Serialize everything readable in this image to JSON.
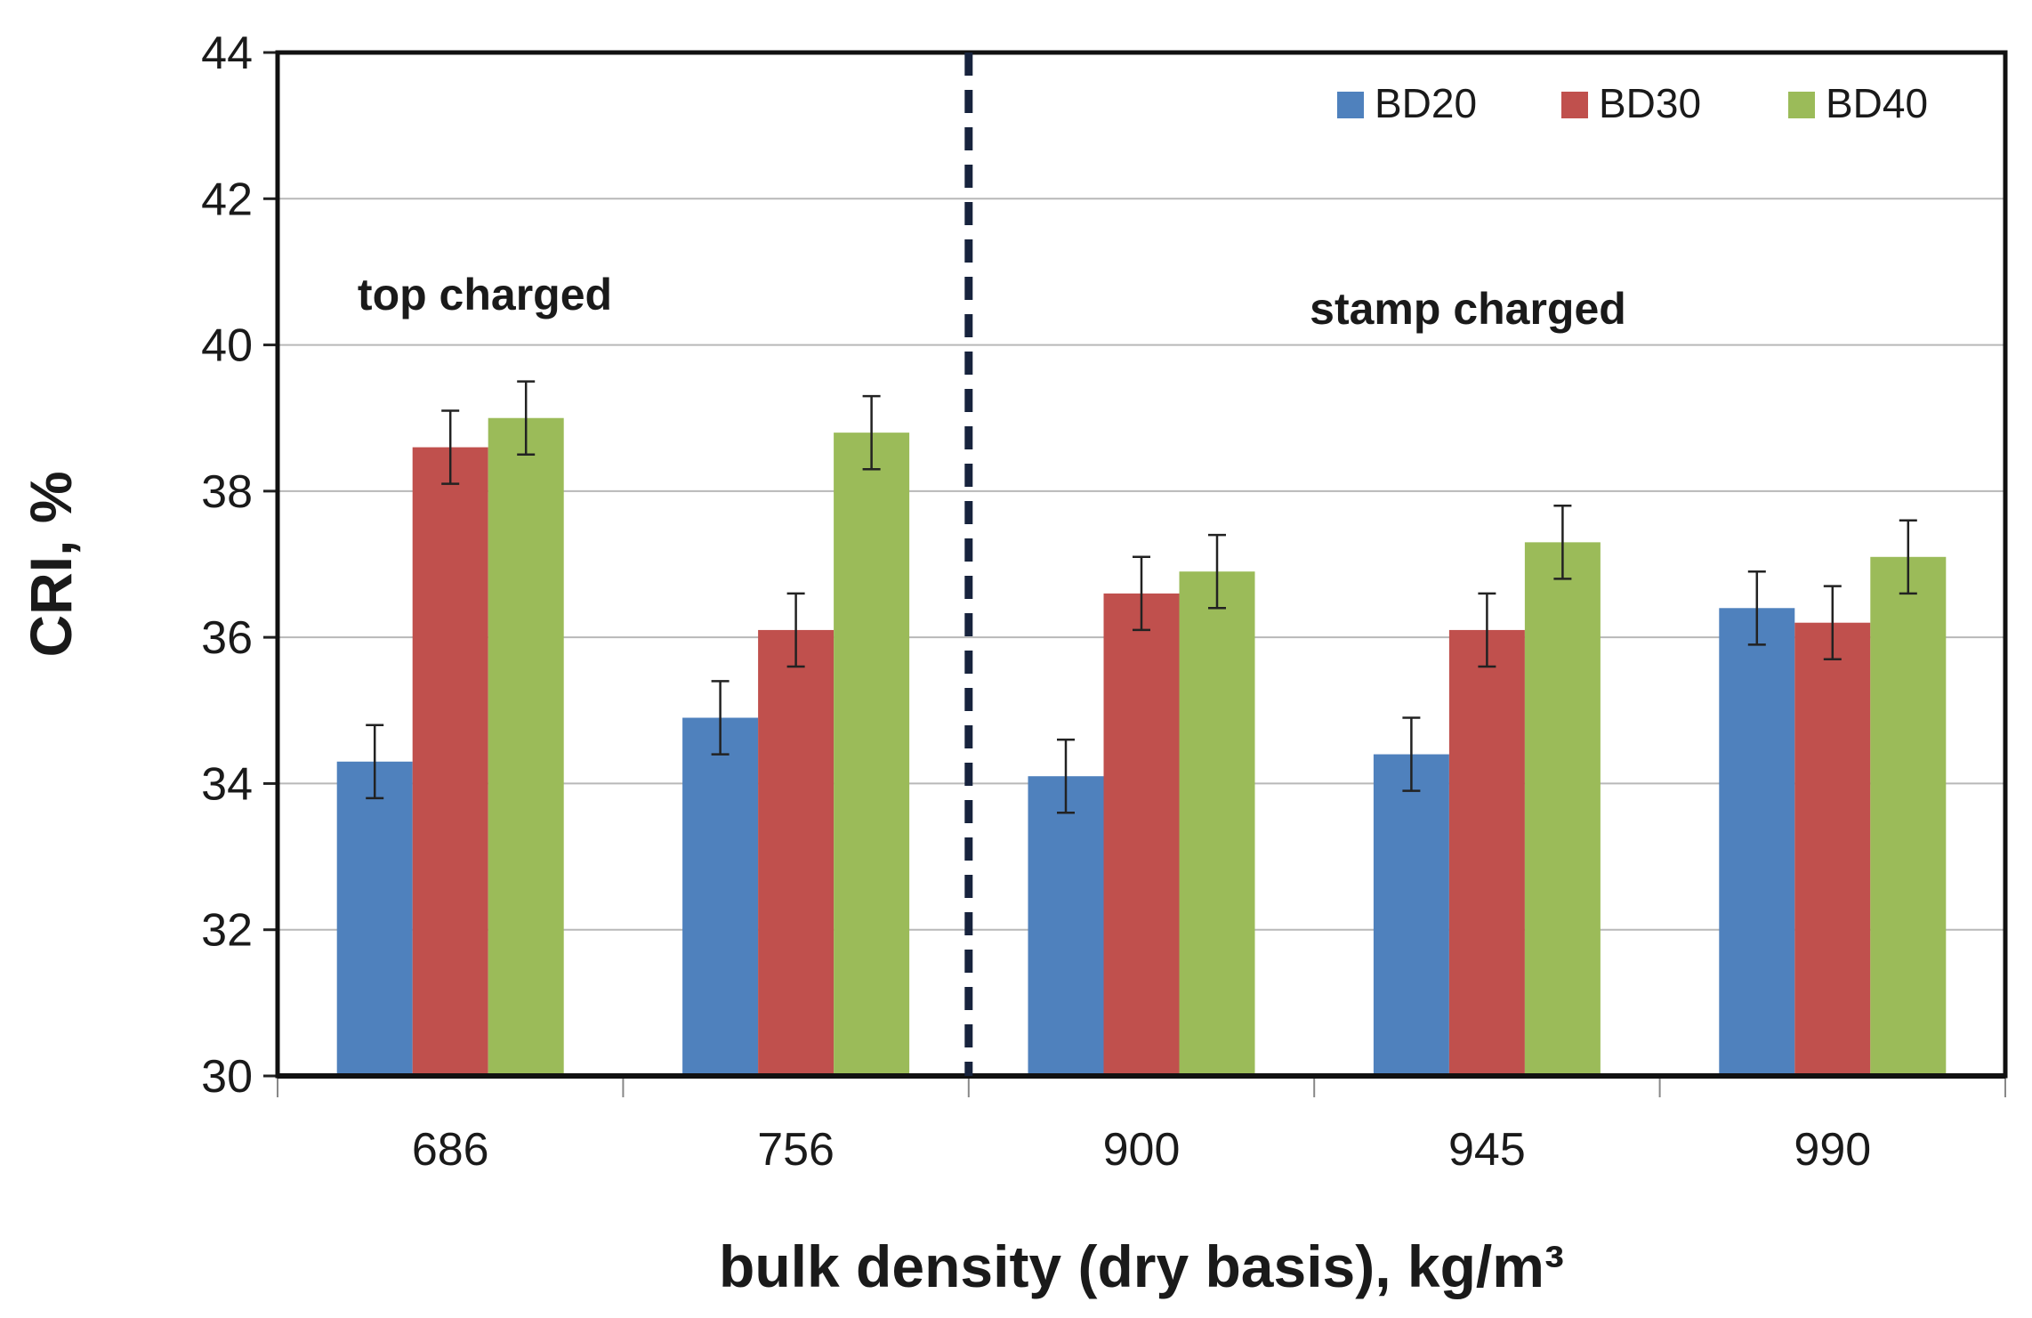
{
  "chart_data": {
    "type": "bar",
    "title": "",
    "xlabel": "bulk density (dry basis), kg/m³",
    "ylabel": "CRI, %",
    "categories": [
      "686",
      "756",
      "900",
      "945",
      "990"
    ],
    "series": [
      {
        "name": "BD20",
        "color": "#4F81BD",
        "values": [
          34.3,
          34.9,
          34.1,
          34.4,
          36.4
        ],
        "errors": [
          0.5,
          0.5,
          0.5,
          0.5,
          0.5
        ]
      },
      {
        "name": "BD30",
        "color": "#C0504D",
        "values": [
          38.6,
          36.1,
          36.6,
          36.1,
          36.2
        ],
        "errors": [
          0.5,
          0.5,
          0.5,
          0.5,
          0.5
        ]
      },
      {
        "name": "BD40",
        "color": "#9BBB59",
        "values": [
          39.0,
          38.8,
          36.9,
          37.3,
          37.1
        ],
        "errors": [
          0.5,
          0.5,
          0.5,
          0.5,
          0.5
        ]
      }
    ],
    "ylim": [
      30,
      44
    ],
    "yticks": [
      "30",
      "32",
      "34",
      "36",
      "38",
      "40",
      "42",
      "44"
    ],
    "grid": true,
    "legend_position": "top-right",
    "annotations": [
      {
        "text": "top charged",
        "category_group": "left"
      },
      {
        "text": "stamp charged",
        "category_group": "right"
      }
    ],
    "divider": {
      "between_categories": [
        "756",
        "900"
      ],
      "style": "dashed",
      "color": "#17233D"
    }
  }
}
